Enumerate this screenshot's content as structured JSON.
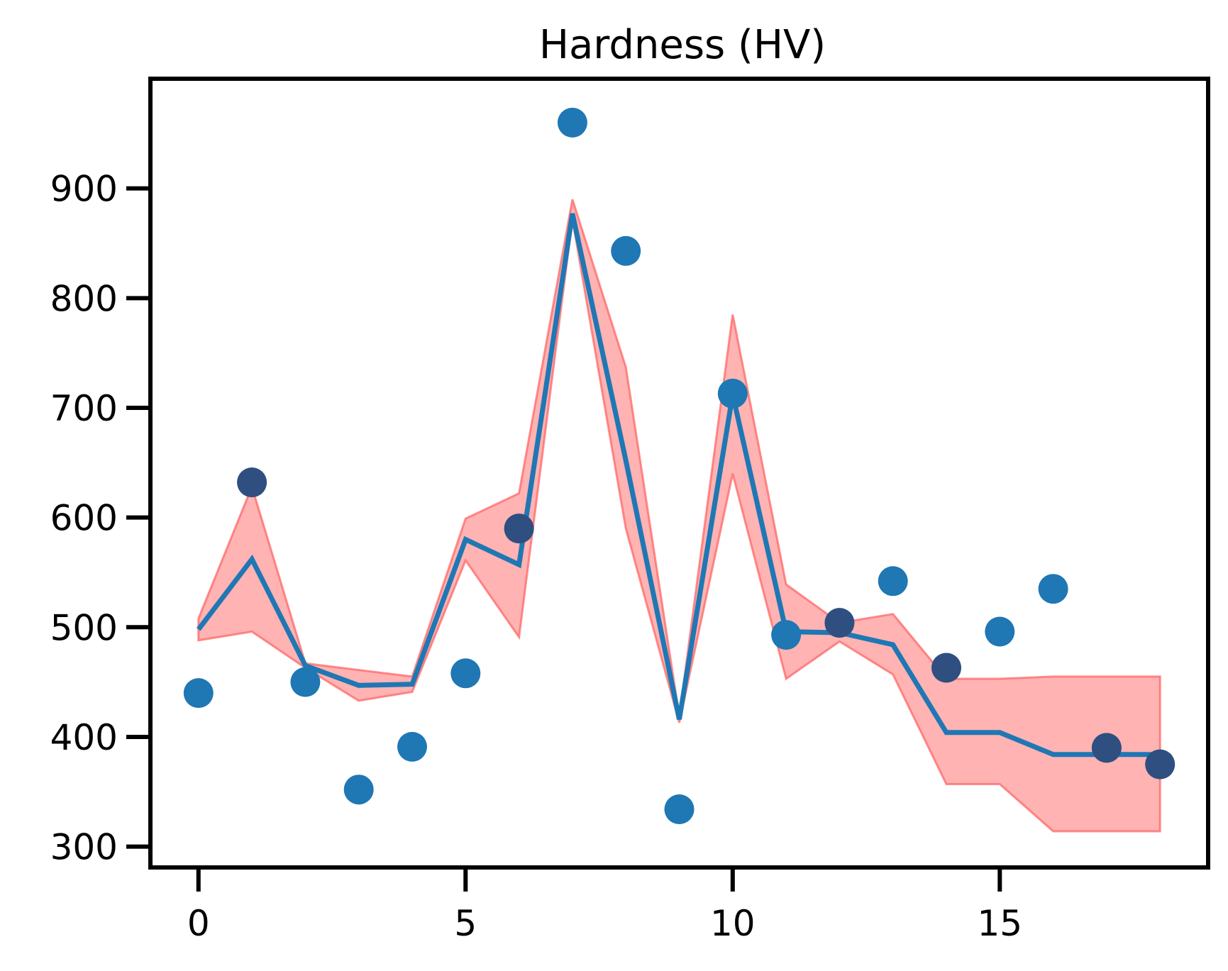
{
  "chart_data": {
    "type": "line",
    "title": "Hardness (HV)",
    "xlabel": "",
    "ylabel": "",
    "xlim": [
      -0.9,
      18.9
    ],
    "ylim": [
      281,
      1000
    ],
    "x_ticks": [
      0,
      5,
      10,
      15
    ],
    "y_ticks": [
      300,
      400,
      500,
      600,
      700,
      800,
      900
    ],
    "grid": false,
    "legend": "none",
    "colors": {
      "points": "#1f77b4",
      "line": "#1f77b4",
      "band_fill": "#ff8080",
      "band_edge": "#ff6060",
      "axes": "#000000"
    },
    "series": [
      {
        "type": "scatter",
        "x": [
          0,
          1,
          2,
          3,
          4,
          5,
          6,
          7,
          8,
          9,
          10,
          11,
          12,
          13,
          14,
          15,
          16,
          17,
          18
        ],
        "values": [
          440,
          632,
          450,
          352,
          391,
          458,
          590,
          960,
          843,
          334,
          713,
          493,
          504,
          542,
          463,
          496,
          535,
          390,
          375
        ]
      },
      {
        "type": "line",
        "x": [
          0,
          1,
          2,
          3,
          4,
          5,
          6,
          7,
          8,
          9,
          10,
          11,
          12,
          13,
          14,
          15,
          16,
          17,
          18
        ],
        "values": [
          498,
          562,
          465,
          447,
          448,
          580,
          557,
          877,
          652,
          416,
          712,
          496,
          495,
          484,
          404,
          404,
          384,
          384,
          384
        ]
      },
      {
        "type": "area",
        "x": [
          0,
          1,
          2,
          3,
          4,
          5,
          6,
          7,
          8,
          9,
          10,
          11,
          12,
          13,
          14,
          15,
          16,
          17,
          18
        ],
        "lower": [
          488,
          496,
          463,
          433,
          441,
          561,
          491,
          872,
          590,
          413,
          640,
          453,
          487,
          457,
          357,
          357,
          314,
          314,
          314
        ],
        "upper": [
          508,
          628,
          467,
          461,
          455,
          599,
          622,
          890,
          737,
          419,
          785,
          539,
          504,
          512,
          453,
          453,
          455,
          455,
          455
        ]
      }
    ]
  }
}
